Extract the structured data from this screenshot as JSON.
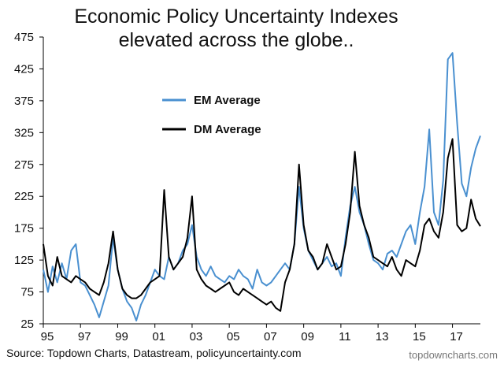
{
  "chart_data": {
    "type": "line",
    "title_lines": [
      "Economic Policy Uncertainty Indexes",
      "elevated across the globe.."
    ],
    "xlabel": "",
    "ylabel": "",
    "xlim": [
      1995,
      2018.5
    ],
    "ylim": [
      25,
      475
    ],
    "x_ticks": [
      {
        "value": 1995,
        "label": "95"
      },
      {
        "value": 1997,
        "label": "97"
      },
      {
        "value": 1999,
        "label": "99"
      },
      {
        "value": 2001,
        "label": "01"
      },
      {
        "value": 2003,
        "label": "03"
      },
      {
        "value": 2005,
        "label": "05"
      },
      {
        "value": 2007,
        "label": "07"
      },
      {
        "value": 2009,
        "label": "09"
      },
      {
        "value": 2011,
        "label": "11"
      },
      {
        "value": 2013,
        "label": "13"
      },
      {
        "value": 2015,
        "label": "15"
      },
      {
        "value": 2017,
        "label": "17"
      }
    ],
    "y_ticks": [
      25,
      75,
      125,
      175,
      225,
      275,
      325,
      375,
      425,
      475
    ],
    "grid": false,
    "legend_position": "top-left inside plot",
    "series": [
      {
        "name": "EM Average",
        "color": "#4a90d0",
        "points": [
          [
            1995.0,
            110
          ],
          [
            1995.25,
            75
          ],
          [
            1995.5,
            115
          ],
          [
            1995.75,
            90
          ],
          [
            1996.0,
            120
          ],
          [
            1996.25,
            95
          ],
          [
            1996.5,
            140
          ],
          [
            1996.75,
            150
          ],
          [
            1997.0,
            90
          ],
          [
            1997.25,
            85
          ],
          [
            1997.5,
            70
          ],
          [
            1997.75,
            55
          ],
          [
            1998.0,
            35
          ],
          [
            1998.25,
            60
          ],
          [
            1998.5,
            85
          ],
          [
            1998.75,
            160
          ],
          [
            1999.0,
            110
          ],
          [
            1999.25,
            80
          ],
          [
            1999.5,
            60
          ],
          [
            1999.75,
            50
          ],
          [
            2000.0,
            30
          ],
          [
            2000.25,
            55
          ],
          [
            2000.5,
            70
          ],
          [
            2000.75,
            90
          ],
          [
            2001.0,
            110
          ],
          [
            2001.25,
            100
          ],
          [
            2001.5,
            95
          ],
          [
            2001.75,
            130
          ],
          [
            2002.0,
            110
          ],
          [
            2002.25,
            120
          ],
          [
            2002.5,
            140
          ],
          [
            2002.75,
            150
          ],
          [
            2003.0,
            180
          ],
          [
            2003.25,
            130
          ],
          [
            2003.5,
            110
          ],
          [
            2003.75,
            100
          ],
          [
            2004.0,
            115
          ],
          [
            2004.25,
            100
          ],
          [
            2004.5,
            95
          ],
          [
            2004.75,
            90
          ],
          [
            2005.0,
            100
          ],
          [
            2005.25,
            95
          ],
          [
            2005.5,
            110
          ],
          [
            2005.75,
            100
          ],
          [
            2006.0,
            95
          ],
          [
            2006.25,
            80
          ],
          [
            2006.5,
            110
          ],
          [
            2006.75,
            90
          ],
          [
            2007.0,
            85
          ],
          [
            2007.25,
            90
          ],
          [
            2007.5,
            100
          ],
          [
            2007.75,
            110
          ],
          [
            2008.0,
            120
          ],
          [
            2008.25,
            110
          ],
          [
            2008.5,
            150
          ],
          [
            2008.75,
            240
          ],
          [
            2009.0,
            175
          ],
          [
            2009.25,
            140
          ],
          [
            2009.5,
            125
          ],
          [
            2009.75,
            110
          ],
          [
            2010.0,
            120
          ],
          [
            2010.25,
            130
          ],
          [
            2010.5,
            115
          ],
          [
            2010.75,
            120
          ],
          [
            2011.0,
            100
          ],
          [
            2011.25,
            160
          ],
          [
            2011.5,
            210
          ],
          [
            2011.75,
            240
          ],
          [
            2012.0,
            200
          ],
          [
            2012.25,
            180
          ],
          [
            2012.5,
            150
          ],
          [
            2012.75,
            125
          ],
          [
            2013.0,
            120
          ],
          [
            2013.25,
            110
          ],
          [
            2013.5,
            135
          ],
          [
            2013.75,
            140
          ],
          [
            2014.0,
            130
          ],
          [
            2014.25,
            150
          ],
          [
            2014.5,
            170
          ],
          [
            2014.75,
            180
          ],
          [
            2015.0,
            150
          ],
          [
            2015.25,
            200
          ],
          [
            2015.5,
            240
          ],
          [
            2015.75,
            330
          ],
          [
            2016.0,
            200
          ],
          [
            2016.25,
            180
          ],
          [
            2016.5,
            250
          ],
          [
            2016.75,
            440
          ],
          [
            2017.0,
            450
          ],
          [
            2017.25,
            340
          ],
          [
            2017.5,
            245
          ],
          [
            2017.75,
            225
          ],
          [
            2018.0,
            270
          ],
          [
            2018.25,
            300
          ],
          [
            2018.5,
            320
          ]
        ]
      },
      {
        "name": "DM Average",
        "color": "#000000",
        "points": [
          [
            1995.0,
            150
          ],
          [
            1995.25,
            100
          ],
          [
            1995.5,
            85
          ],
          [
            1995.75,
            130
          ],
          [
            1996.0,
            100
          ],
          [
            1996.25,
            95
          ],
          [
            1996.5,
            90
          ],
          [
            1996.75,
            100
          ],
          [
            1997.0,
            95
          ],
          [
            1997.25,
            90
          ],
          [
            1997.5,
            80
          ],
          [
            1997.75,
            75
          ],
          [
            1998.0,
            70
          ],
          [
            1998.25,
            90
          ],
          [
            1998.5,
            120
          ],
          [
            1998.75,
            170
          ],
          [
            1999.0,
            110
          ],
          [
            1999.25,
            80
          ],
          [
            1999.5,
            70
          ],
          [
            1999.75,
            65
          ],
          [
            2000.0,
            65
          ],
          [
            2000.25,
            70
          ],
          [
            2000.5,
            80
          ],
          [
            2000.75,
            90
          ],
          [
            2001.0,
            95
          ],
          [
            2001.25,
            100
          ],
          [
            2001.5,
            235
          ],
          [
            2001.75,
            130
          ],
          [
            2002.0,
            110
          ],
          [
            2002.25,
            120
          ],
          [
            2002.5,
            130
          ],
          [
            2002.75,
            160
          ],
          [
            2003.0,
            225
          ],
          [
            2003.25,
            110
          ],
          [
            2003.5,
            95
          ],
          [
            2003.75,
            85
          ],
          [
            2004.0,
            80
          ],
          [
            2004.25,
            75
          ],
          [
            2004.5,
            80
          ],
          [
            2004.75,
            85
          ],
          [
            2005.0,
            90
          ],
          [
            2005.25,
            75
          ],
          [
            2005.5,
            70
          ],
          [
            2005.75,
            80
          ],
          [
            2006.0,
            75
          ],
          [
            2006.25,
            70
          ],
          [
            2006.5,
            65
          ],
          [
            2006.75,
            60
          ],
          [
            2007.0,
            55
          ],
          [
            2007.25,
            60
          ],
          [
            2007.5,
            50
          ],
          [
            2007.75,
            45
          ],
          [
            2008.0,
            90
          ],
          [
            2008.25,
            110
          ],
          [
            2008.5,
            150
          ],
          [
            2008.75,
            275
          ],
          [
            2009.0,
            180
          ],
          [
            2009.25,
            140
          ],
          [
            2009.5,
            130
          ],
          [
            2009.75,
            110
          ],
          [
            2010.0,
            120
          ],
          [
            2010.25,
            150
          ],
          [
            2010.5,
            130
          ],
          [
            2010.75,
            110
          ],
          [
            2011.0,
            115
          ],
          [
            2011.25,
            150
          ],
          [
            2011.5,
            200
          ],
          [
            2011.75,
            295
          ],
          [
            2012.0,
            210
          ],
          [
            2012.25,
            180
          ],
          [
            2012.5,
            160
          ],
          [
            2012.75,
            130
          ],
          [
            2013.0,
            125
          ],
          [
            2013.25,
            120
          ],
          [
            2013.5,
            115
          ],
          [
            2013.75,
            130
          ],
          [
            2014.0,
            110
          ],
          [
            2014.25,
            100
          ],
          [
            2014.5,
            125
          ],
          [
            2014.75,
            120
          ],
          [
            2015.0,
            115
          ],
          [
            2015.25,
            140
          ],
          [
            2015.5,
            180
          ],
          [
            2015.75,
            190
          ],
          [
            2016.0,
            170
          ],
          [
            2016.25,
            160
          ],
          [
            2016.5,
            200
          ],
          [
            2016.75,
            285
          ],
          [
            2017.0,
            315
          ],
          [
            2017.25,
            180
          ],
          [
            2017.5,
            170
          ],
          [
            2017.75,
            175
          ],
          [
            2018.0,
            220
          ],
          [
            2018.25,
            190
          ],
          [
            2018.5,
            178
          ]
        ]
      }
    ]
  },
  "footer": {
    "source": "Source: Topdown Charts, Datastream, policyuncertainty.com",
    "brand": "topdowncharts.com"
  }
}
